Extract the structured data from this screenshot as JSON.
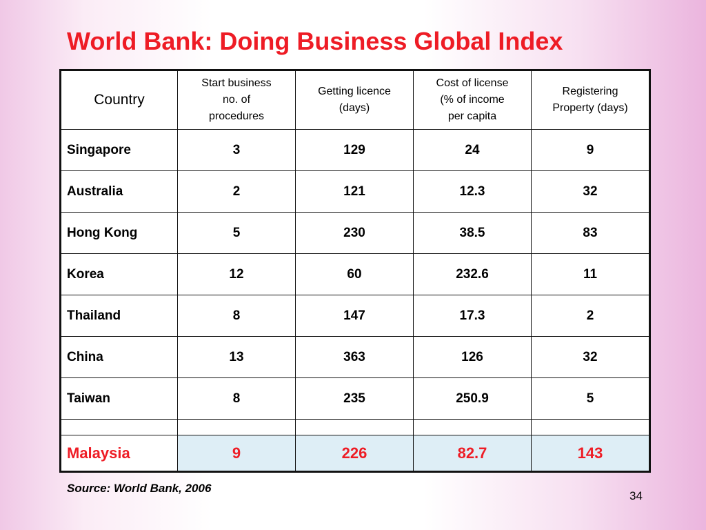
{
  "slide": {
    "title": "World Bank: Doing Business Global Index",
    "source": "Source: World Bank, 2006",
    "page_number": "34",
    "colors": {
      "title": "#ee1c25",
      "highlight_text": "#ee1c25",
      "highlight_fill": "#deeef6"
    }
  },
  "table": {
    "headers": {
      "country": "Country",
      "start_business_1": "Start business",
      "start_business_2": "no. of",
      "start_business_3": "procedures",
      "getting_licence_1": "Getting licence",
      "getting_licence_2": "(days)",
      "cost_license_1": "Cost of license",
      "cost_license_2": "(% of income",
      "cost_license_3": "per capita",
      "registering_1": "Registering",
      "registering_2": "Property (days)"
    },
    "rows": [
      {
        "country": "Singapore",
        "start_procedures": "3",
        "licence_days": "129",
        "license_cost": "24",
        "property_days": "9"
      },
      {
        "country": "Australia",
        "start_procedures": "2",
        "licence_days": "121",
        "license_cost": "12.3",
        "property_days": "32"
      },
      {
        "country": "Hong Kong",
        "start_procedures": "5",
        "licence_days": "230",
        "license_cost": "38.5",
        "property_days": "83"
      },
      {
        "country": "Korea",
        "start_procedures": "12",
        "licence_days": "60",
        "license_cost": "232.6",
        "property_days": "11"
      },
      {
        "country": "Thailand",
        "start_procedures": "8",
        "licence_days": "147",
        "license_cost": "17.3",
        "property_days": "2"
      },
      {
        "country": "China",
        "start_procedures": "13",
        "licence_days": "363",
        "license_cost": "126",
        "property_days": "32"
      },
      {
        "country": "Taiwan",
        "start_procedures": "8",
        "licence_days": "235",
        "license_cost": "250.9",
        "property_days": "5"
      }
    ],
    "highlight_row": {
      "country": "Malaysia",
      "start_procedures": "9",
      "licence_days": "226",
      "license_cost": "82.7",
      "property_days": "143"
    }
  }
}
